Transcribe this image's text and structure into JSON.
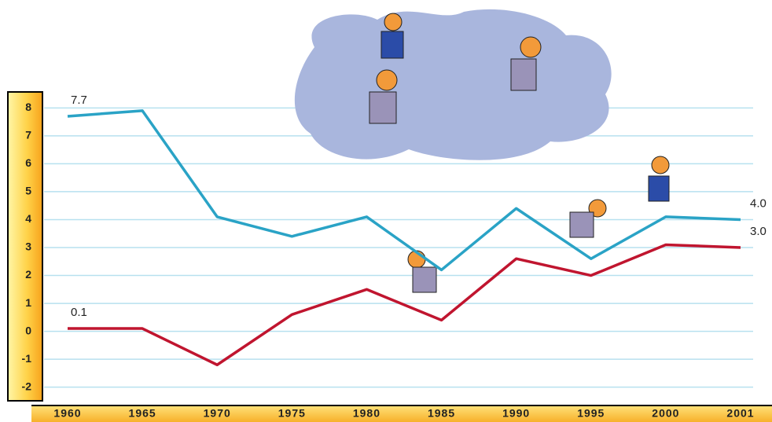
{
  "chart_data": {
    "type": "line",
    "categories": [
      "1960",
      "1965",
      "1970",
      "1975",
      "1980",
      "1985",
      "1990",
      "1995",
      "2000",
      "2001"
    ],
    "series": [
      {
        "color": "#2aa3c6",
        "values": [
          7.7,
          7.9,
          4.1,
          3.4,
          4.1,
          2.2,
          4.4,
          2.6,
          4.1,
          4.0
        ],
        "value_labels": [
          "7.7",
          null,
          null,
          null,
          null,
          null,
          null,
          null,
          null,
          "4.0"
        ]
      },
      {
        "color": "#c0152f",
        "values": [
          0.1,
          0.1,
          -1.2,
          0.6,
          1.5,
          0.4,
          2.6,
          2.0,
          3.1,
          3.0
        ],
        "value_labels": [
          "0.1",
          null,
          null,
          null,
          null,
          null,
          null,
          null,
          null,
          "3.0"
        ]
      }
    ],
    "ylim": [
      -2.6,
      8.6
    ],
    "yticks": [
      -2,
      -1,
      0,
      1,
      2,
      3,
      4,
      5,
      6,
      7,
      8
    ],
    "grid": true
  }
}
